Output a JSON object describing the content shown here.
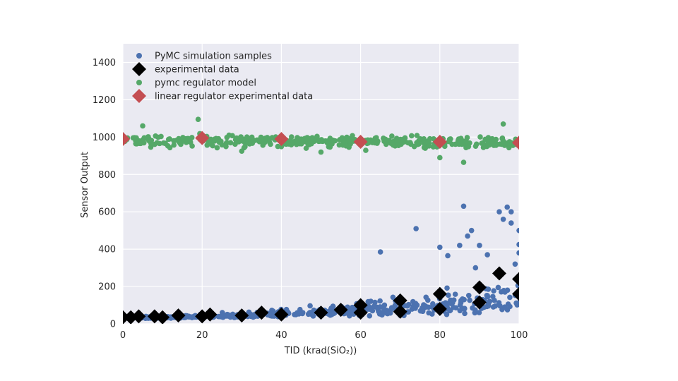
{
  "chart_data": {
    "type": "scatter",
    "xlabel": "TID (krad(SiO₂))",
    "ylabel": "Sensor Output",
    "xlim": [
      0,
      100
    ],
    "ylim": [
      0,
      1500
    ],
    "x_ticks": [
      0,
      20,
      40,
      60,
      80,
      100
    ],
    "y_ticks": [
      0,
      200,
      400,
      600,
      800,
      1000,
      1200,
      1400
    ],
    "grid": true,
    "legend_position": "top-left",
    "colors": {
      "background": "#eaeaf2",
      "grid": "#ffffff",
      "pymc_samples": "#4c72b0",
      "experimental": "#000000",
      "regulator_model": "#55a868",
      "regulator_experimental": "#c44e52"
    },
    "legend": [
      {
        "label": "PyMC simulation samples",
        "marker": "circle",
        "color": "#4c72b0"
      },
      {
        "label": "experimental data",
        "marker": "diamond",
        "color": "#000000"
      },
      {
        "label": "pymc regulator model",
        "marker": "circle",
        "color": "#55a868"
      },
      {
        "label": "linear regulator experimental data",
        "marker": "diamond",
        "color": "#c44e52"
      }
    ],
    "series": [
      {
        "name": "experimental data",
        "marker": "diamond",
        "points": [
          [
            0,
            35
          ],
          [
            2,
            35
          ],
          [
            4,
            40
          ],
          [
            8,
            40
          ],
          [
            10,
            35
          ],
          [
            14,
            45
          ],
          [
            20,
            40
          ],
          [
            22,
            50
          ],
          [
            30,
            45
          ],
          [
            35,
            60
          ],
          [
            40,
            50
          ],
          [
            50,
            60
          ],
          [
            55,
            75
          ],
          [
            60,
            60
          ],
          [
            60,
            100
          ],
          [
            70,
            65
          ],
          [
            70,
            125
          ],
          [
            80,
            80
          ],
          [
            80,
            160
          ],
          [
            90,
            115
          ],
          [
            90,
            195
          ],
          [
            95,
            270
          ],
          [
            100,
            160
          ],
          [
            100,
            240
          ]
        ]
      },
      {
        "name": "linear regulator experimental data",
        "marker": "diamond",
        "points": [
          [
            0,
            990
          ],
          [
            20,
            995
          ],
          [
            40,
            990
          ],
          [
            60,
            975
          ],
          [
            80,
            975
          ],
          [
            100,
            970
          ]
        ]
      },
      {
        "name": "PyMC simulation samples (highlighted)",
        "marker": "circle",
        "points": [
          [
            65,
            385
          ],
          [
            74,
            510
          ],
          [
            86,
            630
          ],
          [
            88,
            500
          ],
          [
            90,
            420
          ],
          [
            95,
            600
          ],
          [
            97,
            625
          ],
          [
            98,
            600
          ],
          [
            100,
            500
          ],
          [
            100,
            425
          ],
          [
            100,
            380
          ],
          [
            80,
            410
          ],
          [
            82,
            365
          ],
          [
            85,
            420
          ],
          [
            92,
            370
          ],
          [
            96,
            560
          ],
          [
            98,
            540
          ],
          [
            99,
            320
          ],
          [
            87,
            470
          ],
          [
            89,
            300
          ]
        ]
      },
      {
        "name": "pymc regulator model (highlighted)",
        "marker": "circle",
        "points": [
          [
            19,
            1095
          ],
          [
            86,
            865
          ],
          [
            96,
            1070
          ],
          [
            5,
            1060
          ],
          [
            30,
            925
          ],
          [
            50,
            920
          ],
          [
            80,
            890
          ]
        ]
      }
    ],
    "pymc_samples_range": {
      "x": [
        0,
        100
      ],
      "low_start": 30,
      "low_end": 80,
      "spread_start": 10,
      "spread_end": 150
    },
    "regulator_model_range": {
      "x": [
        0,
        100
      ],
      "center": 985,
      "spread": 45
    }
  }
}
